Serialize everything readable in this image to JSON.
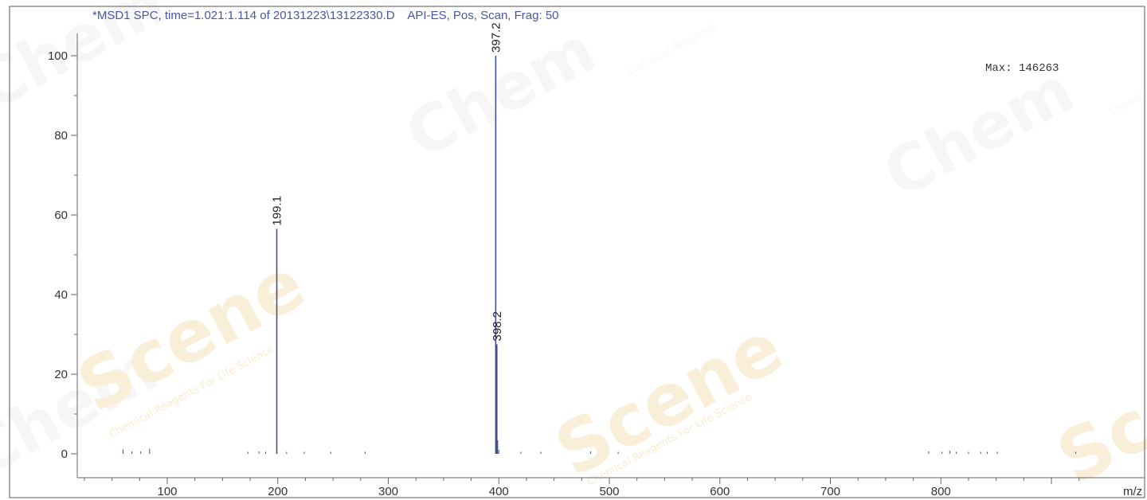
{
  "chart_data": {
    "type": "bar",
    "title": "*MSD1 SPC, time=1.021:1.114 of 20131223\\13122330.D    API-ES, Pos, Scan, Frag: 50",
    "max_label": "Max: 146263",
    "xlabel": "m/z",
    "ylabel": "",
    "xlim": [
      25,
      945
    ],
    "ylim": [
      -5,
      106
    ],
    "x_ticks": [
      100,
      200,
      300,
      400,
      500,
      600,
      700,
      800
    ],
    "y_ticks": [
      0,
      20,
      40,
      60,
      80,
      100
    ],
    "peaks": [
      {
        "mz": 199.1,
        "intensity": 56.5,
        "label": "199.1"
      },
      {
        "mz": 397.2,
        "intensity": 100,
        "label": "397.2"
      },
      {
        "mz": 398.2,
        "intensity": 27.5,
        "label": "398.2"
      }
    ],
    "minor_peaks": [
      {
        "mz": 60,
        "intensity": 0.9
      },
      {
        "mz": 68,
        "intensity": 0.4
      },
      {
        "mz": 76,
        "intensity": 0.4
      },
      {
        "mz": 84,
        "intensity": 1.1
      },
      {
        "mz": 173,
        "intensity": 0.3
      },
      {
        "mz": 183,
        "intensity": 0.4
      },
      {
        "mz": 189,
        "intensity": 0.3
      },
      {
        "mz": 208,
        "intensity": 0.3
      },
      {
        "mz": 224,
        "intensity": 0.3
      },
      {
        "mz": 248,
        "intensity": 0.3
      },
      {
        "mz": 279,
        "intensity": 0.3
      },
      {
        "mz": 399,
        "intensity": 3.2
      },
      {
        "mz": 400,
        "intensity": 0.8
      },
      {
        "mz": 420,
        "intensity": 0.3
      },
      {
        "mz": 438,
        "intensity": 0.3
      },
      {
        "mz": 483,
        "intensity": 0.4
      },
      {
        "mz": 508,
        "intensity": 0.3
      },
      {
        "mz": 789,
        "intensity": 0.4
      },
      {
        "mz": 801,
        "intensity": 0.3
      },
      {
        "mz": 808,
        "intensity": 0.6
      },
      {
        "mz": 814,
        "intensity": 0.3
      },
      {
        "mz": 825,
        "intensity": 0.3
      },
      {
        "mz": 836,
        "intensity": 0.3
      },
      {
        "mz": 842,
        "intensity": 0.3
      },
      {
        "mz": 851,
        "intensity": 0.3
      },
      {
        "mz": 922,
        "intensity": 0.3
      }
    ],
    "grid": false,
    "colors": {
      "peak": "#44508a",
      "title": "#4a55a2",
      "axis": "#666666",
      "watermark": "#f4e2b8"
    }
  },
  "watermark": {
    "brand_a": "Chem",
    "brand_b": "Scene",
    "tagline_a": "Chemical Reagents For Life Science",
    "tagline_b": "Chemical Reagents"
  }
}
